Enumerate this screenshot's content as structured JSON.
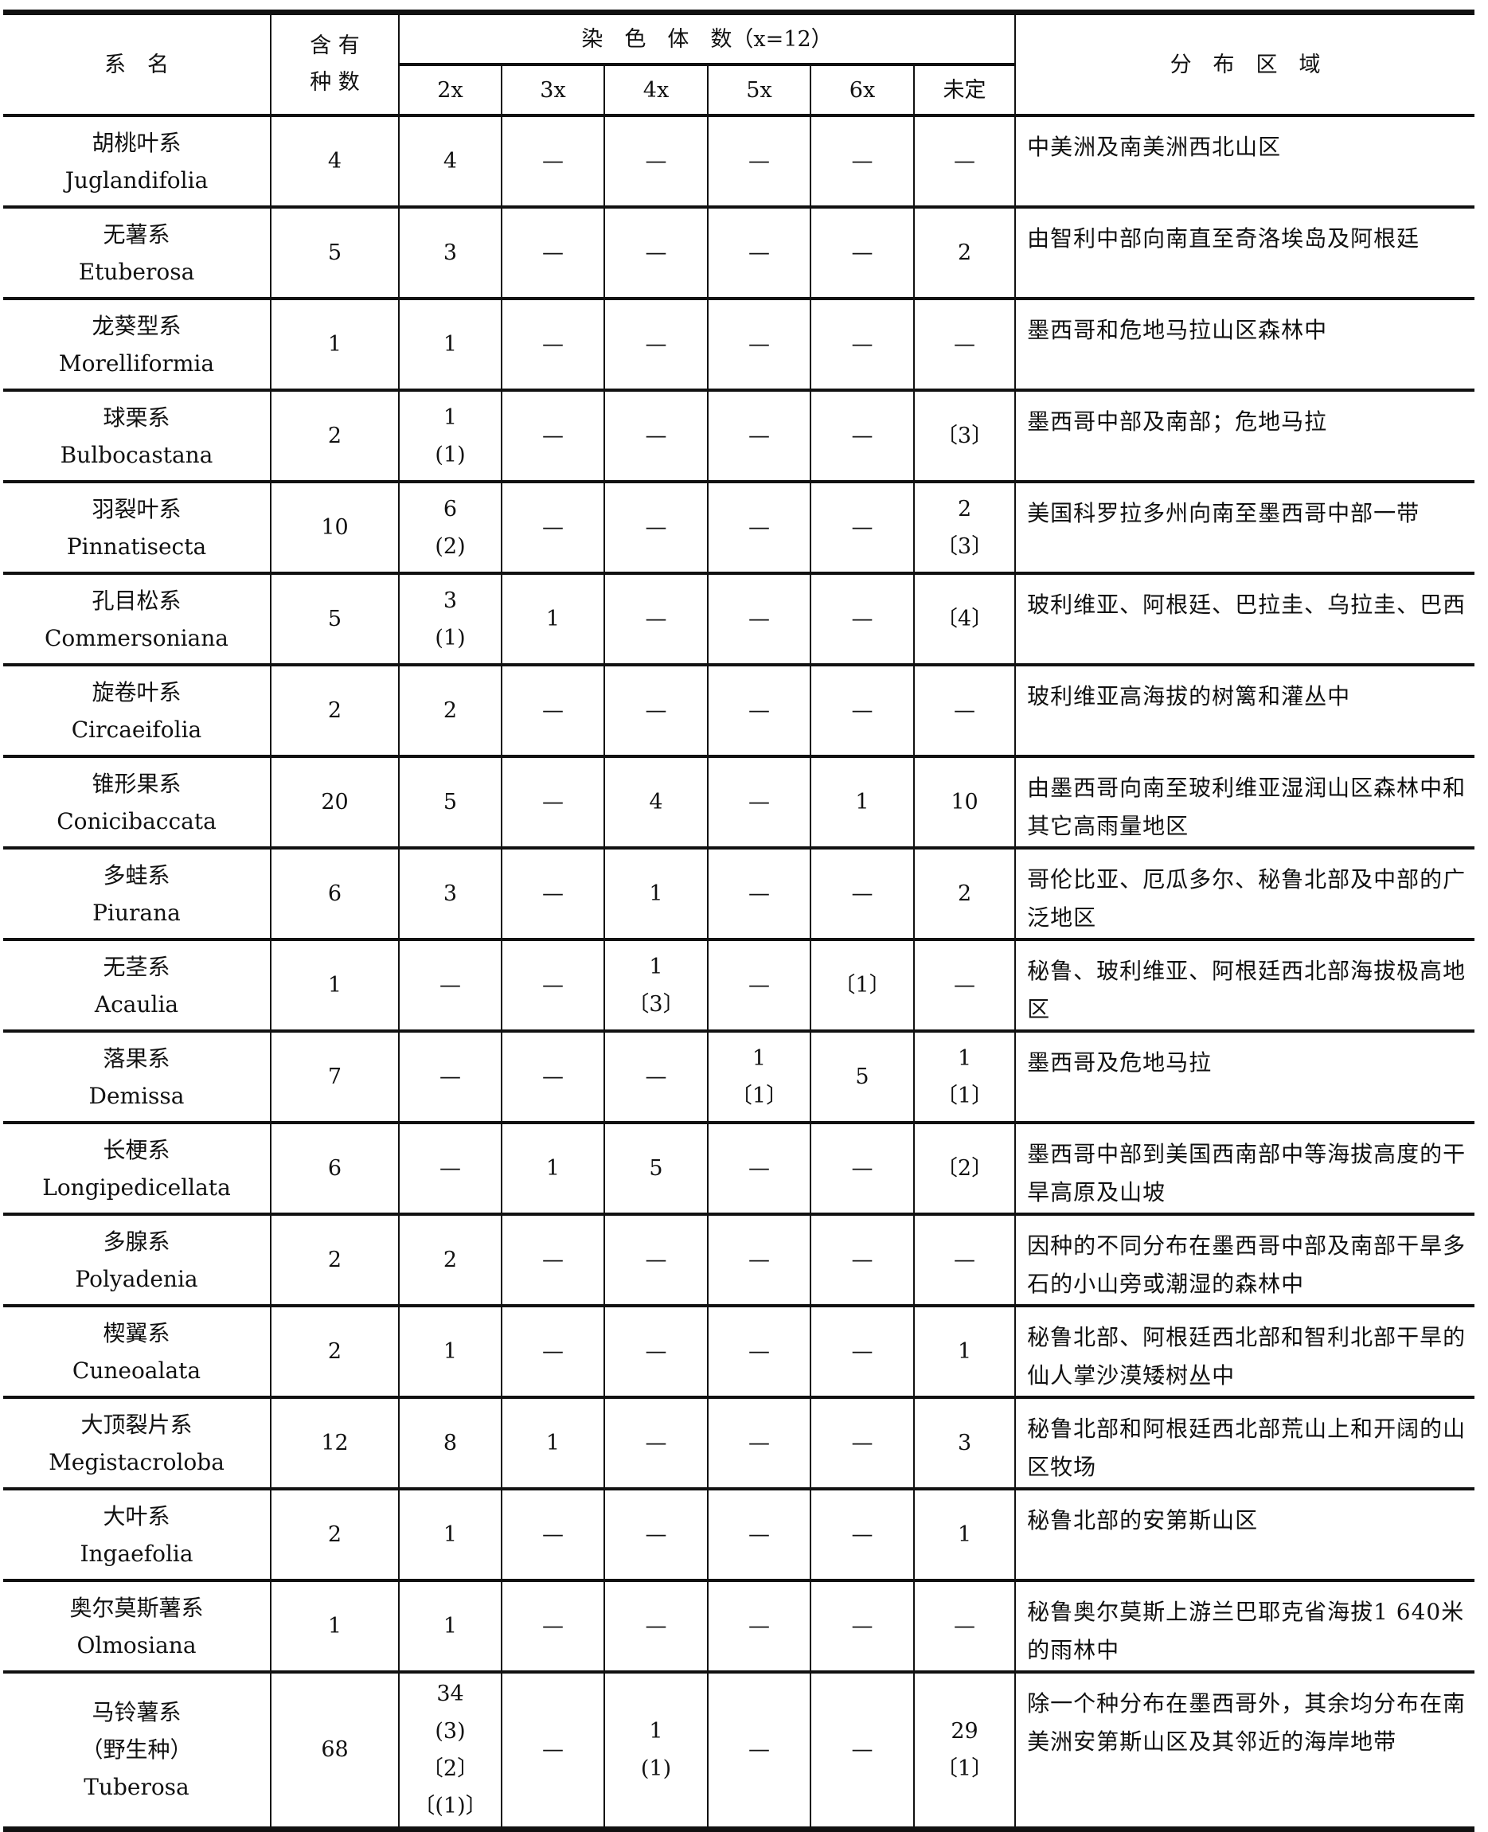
{
  "header": {
    "series_name": "系　名",
    "species_count": "含 有\n种 数",
    "chromosome_number": "染　色　体　数（x=12）",
    "ploidy_columns": [
      "2x",
      "3x",
      "4x",
      "5x",
      "6x",
      "未定"
    ],
    "distribution": "分　布　区　域"
  },
  "rows": [
    {
      "name": "胡桃叶系\nJuglandifolia",
      "count": "4",
      "cells": [
        "4",
        "—",
        "—",
        "—",
        "—",
        "—"
      ],
      "distribution": "中美洲及南美洲西北山区"
    },
    {
      "name": "无薯系\nEtuberosa",
      "count": "5",
      "cells": [
        "3",
        "—",
        "—",
        "—",
        "—",
        "2"
      ],
      "distribution": "由智利中部向南直至奇洛埃岛及阿根廷"
    },
    {
      "name": "龙葵型系\nMorelliformia",
      "count": "1",
      "cells": [
        "1",
        "—",
        "—",
        "—",
        "—",
        "—"
      ],
      "distribution": "墨西哥和危地马拉山区森林中"
    },
    {
      "name": "球栗系\nBulbocastana",
      "count": "2",
      "cells": [
        "1\n(1)",
        "—",
        "—",
        "—",
        "—",
        "〔3〕"
      ],
      "distribution": "墨西哥中部及南部；危地马拉"
    },
    {
      "name": "羽裂叶系\nPinnatisecta",
      "count": "10",
      "cells": [
        "6\n(2)",
        "—",
        "—",
        "—",
        "—",
        "2\n〔3〕"
      ],
      "distribution": "美国科罗拉多州向南至墨西哥中部一带"
    },
    {
      "name": "孔目松系\nCommersoniana",
      "count": "5",
      "cells": [
        "3\n(1)",
        "1",
        "—",
        "—",
        "—",
        "〔4〕"
      ],
      "distribution": "玻利维亚、阿根廷、巴拉圭、乌拉圭、巴西"
    },
    {
      "name": "旋卷叶系\nCircaeifolia",
      "count": "2",
      "cells": [
        "2",
        "—",
        "—",
        "—",
        "—",
        "—"
      ],
      "distribution": "玻利维亚高海拔的树篱和灌丛中"
    },
    {
      "name": "锥形果系\nConicibaccata",
      "count": "20",
      "cells": [
        "5",
        "—",
        "4",
        "—",
        "1",
        "10"
      ],
      "distribution": "由墨西哥向南至玻利维亚湿润山区森林中和其它高雨量地区"
    },
    {
      "name": "多蛙系\nPiurana",
      "count": "6",
      "cells": [
        "3",
        "—",
        "1",
        "—",
        "—",
        "2"
      ],
      "distribution": "哥伦比亚、厄瓜多尔、秘鲁北部及中部的广泛地区"
    },
    {
      "name": "无茎系\nAcaulia",
      "count": "1",
      "cells": [
        "—",
        "—",
        "1\n〔3〕",
        "—",
        "〔1〕",
        "—"
      ],
      "distribution": "秘鲁、玻利维亚、阿根廷西北部海拔极高地区"
    },
    {
      "name": "落果系\nDemissa",
      "count": "7",
      "cells": [
        "—",
        "—",
        "—",
        "1\n〔1〕",
        "5",
        "1\n〔1〕"
      ],
      "distribution": "墨西哥及危地马拉"
    },
    {
      "name": "长梗系\nLongipedicellata",
      "count": "6",
      "cells": [
        "—",
        "1",
        "5",
        "—",
        "—",
        "〔2〕"
      ],
      "distribution": "墨西哥中部到美国西南部中等海拔高度的干旱高原及山坡"
    },
    {
      "name": "多腺系\nPolyadenia",
      "count": "2",
      "cells": [
        "2",
        "—",
        "—",
        "—",
        "—",
        "—"
      ],
      "distribution": "因种的不同分布在墨西哥中部及南部干旱多石的小山旁或潮湿的森林中"
    },
    {
      "name": "楔翼系\nCuneoalata",
      "count": "2",
      "cells": [
        "1",
        "—",
        "—",
        "—",
        "—",
        "1"
      ],
      "distribution": "秘鲁北部、阿根廷西北部和智利北部干旱的仙人掌沙漠矮树丛中"
    },
    {
      "name": "大顶裂片系\nMegistacroloba",
      "count": "12",
      "cells": [
        "8",
        "1",
        "—",
        "—",
        "—",
        "3"
      ],
      "distribution": "秘鲁北部和阿根廷西北部荒山上和开阔的山区牧场"
    },
    {
      "name": "大叶系\nIngaefolia",
      "count": "2",
      "cells": [
        "1",
        "—",
        "—",
        "—",
        "—",
        "1"
      ],
      "distribution": "秘鲁北部的安第斯山区"
    },
    {
      "name": "奥尔莫斯薯系\nOlmosiana",
      "count": "1",
      "cells": [
        "1",
        "—",
        "—",
        "—",
        "—",
        "—"
      ],
      "distribution": "秘鲁奥尔莫斯上游兰巴耶克省海拔1 640米的雨林中"
    },
    {
      "name": "马铃薯系\n（野生种）\nTuberosa",
      "count": "68",
      "cells": [
        "34\n(3)\n〔2〕\n〔(1)〕",
        "—",
        "1\n(1)",
        "—",
        "—",
        "29\n〔1〕"
      ],
      "distribution": "除一个种分布在墨西哥外，其余均分布在南美洲安第斯山区及其邻近的海岸地带"
    }
  ]
}
